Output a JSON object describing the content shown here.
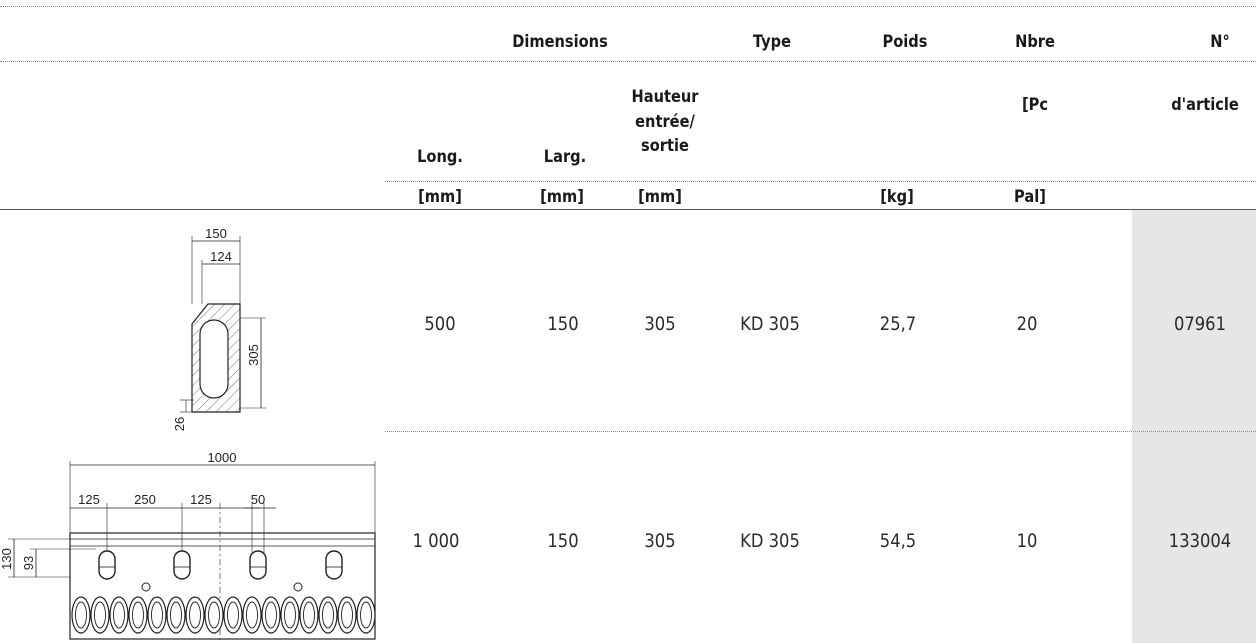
{
  "header": {
    "dimensions": "Dimensions",
    "type": "Type",
    "poids": "Poids",
    "nbre": "Nbre",
    "article_no": "N°",
    "long": "Long.",
    "larg": "Larg.",
    "hauteur_l1": "Hauteur",
    "hauteur_l2": "entrée/",
    "hauteur_l3": "sortie",
    "pc": "[Pc",
    "article": "d'article",
    "unit_long": "[mm]",
    "unit_larg": "[mm]",
    "unit_haut": "[mm]",
    "unit_poids": "[kg]",
    "unit_pal": "Pal]"
  },
  "rows": [
    {
      "long": "500",
      "larg": "150",
      "hauteur": "305",
      "type": "KD 305",
      "poids": "25,7",
      "nbre": "20",
      "article": "07961",
      "drawing": {
        "width": "150",
        "inner_width": "124",
        "height": "305",
        "base": "26"
      }
    },
    {
      "long": "1 000",
      "larg": "150",
      "hauteur": "305",
      "type": "KD 305",
      "poids": "54,5",
      "nbre": "10",
      "article": "133004",
      "drawing": {
        "length": "1000",
        "d1": "125",
        "d2": "250",
        "d3": "125",
        "d4": "50",
        "h1": "130",
        "h2": "93"
      }
    }
  ]
}
